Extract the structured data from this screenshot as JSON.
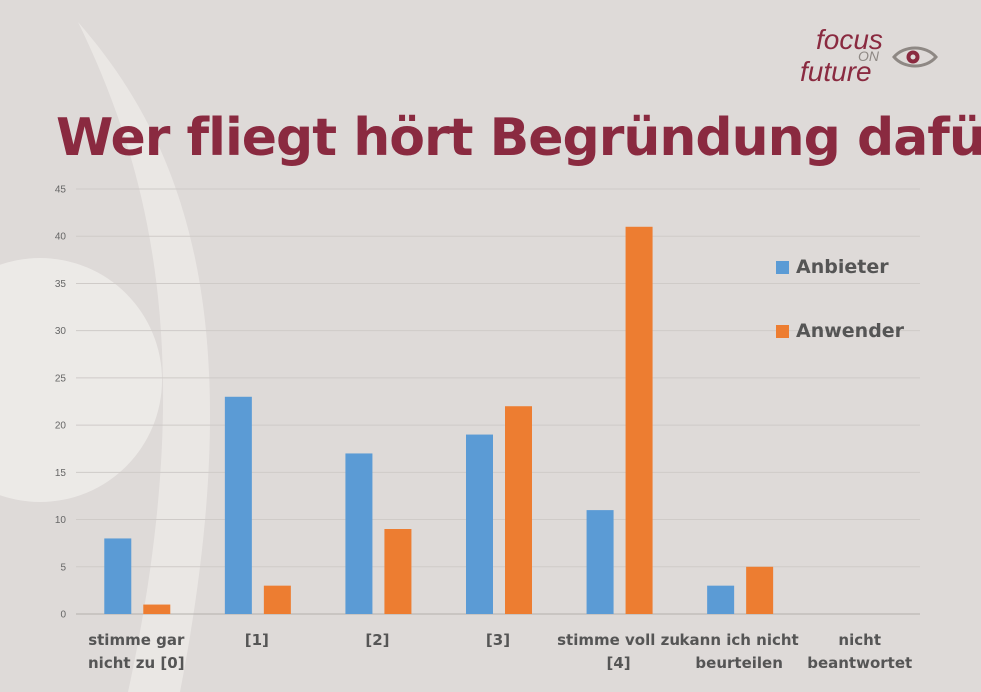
{
  "header": {
    "title": "Wer fliegt hört Begründung dafür"
  },
  "logo": {
    "word1": "focus",
    "word2": "ON",
    "word3": "future"
  },
  "colors": {
    "anbieter": "#5b9bd5",
    "anwender": "#ed7d31",
    "title": "#8a2a40"
  },
  "chart_data": {
    "type": "bar",
    "categories": [
      [
        "stimme gar",
        "nicht zu [0]"
      ],
      [
        "[1]"
      ],
      [
        "[2]"
      ],
      [
        "[3]"
      ],
      [
        "stimme voll zu",
        "[4]"
      ],
      [
        "kann ich nicht",
        "beurteilen"
      ],
      [
        "nicht",
        "beantwortet"
      ]
    ],
    "series": [
      {
        "name": "Anbieter",
        "values": [
          8,
          23,
          17,
          19,
          11,
          3,
          0
        ]
      },
      {
        "name": "Anwender",
        "values": [
          1,
          3,
          9,
          22,
          41,
          5,
          0
        ]
      }
    ],
    "yticks": [
      0,
      5,
      10,
      15,
      20,
      25,
      30,
      35,
      40,
      45
    ],
    "ylim": [
      0,
      45
    ],
    "grid": true,
    "legend": "right"
  }
}
